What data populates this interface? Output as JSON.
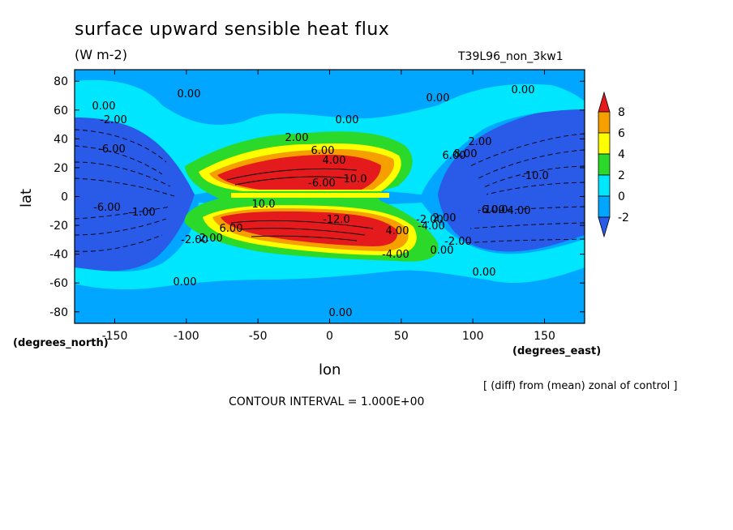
{
  "chart_data": {
    "type": "heatmap",
    "title": "surface upward sensible heat flux",
    "units": "(W m-2)",
    "run_label": "T39L96_non_3kw1",
    "xlabel": "lon",
    "ylabel": "lat",
    "x_unit_label": "(degrees_east)",
    "y_unit_label": "(degrees_north)",
    "xlim": [
      -178,
      178
    ],
    "ylim": [
      -88,
      88
    ],
    "xticks": [
      -150,
      -100,
      -50,
      0,
      50,
      100,
      150
    ],
    "xtick_labels": [
      "-150",
      "-100",
      "-50",
      "0",
      "50",
      "100",
      "150"
    ],
    "yticks": [
      80,
      60,
      40,
      20,
      0,
      -20,
      -40,
      -60,
      -80
    ],
    "ytick_labels": [
      "80",
      "60",
      "40",
      "20",
      "0",
      "-20",
      "-40",
      "-60",
      "-80"
    ],
    "colorbar_levels": [
      8,
      6,
      4,
      2,
      0,
      -2
    ],
    "colorbar_labels": [
      "8",
      "6",
      "4",
      "2",
      "0",
      "-2"
    ],
    "colorbar_colors": [
      "#e41a1c",
      "#f6a000",
      "#ffff00",
      "#2bd92b",
      "#00e6ff",
      "#00a6ff",
      "#2a5ae8"
    ],
    "contour_labels": [
      "0.00",
      "0.00",
      "0.00",
      "0.00",
      "0.00",
      "0.00",
      "0.00",
      "0.00",
      "0.00",
      "-2.00",
      "-2.00",
      "-2.00",
      "2.00",
      "2.00",
      "-6.00",
      "-6.00",
      "-6.00",
      "-10.0",
      "6.00",
      "4.00",
      "10.0",
      "4.00",
      "-2.00",
      "-2.00",
      "-4.00",
      "-6.00",
      "10.0",
      "6.00",
      "8.00",
      "-12.0",
      "-1.00",
      "6.00",
      "2.00",
      "10.0",
      "4.00",
      "-4.00"
    ],
    "annotation": "[ (diff) from (mean) zonal of control ]",
    "contour_interval": "CONTOUR INTERVAL = 1.000E+00"
  }
}
